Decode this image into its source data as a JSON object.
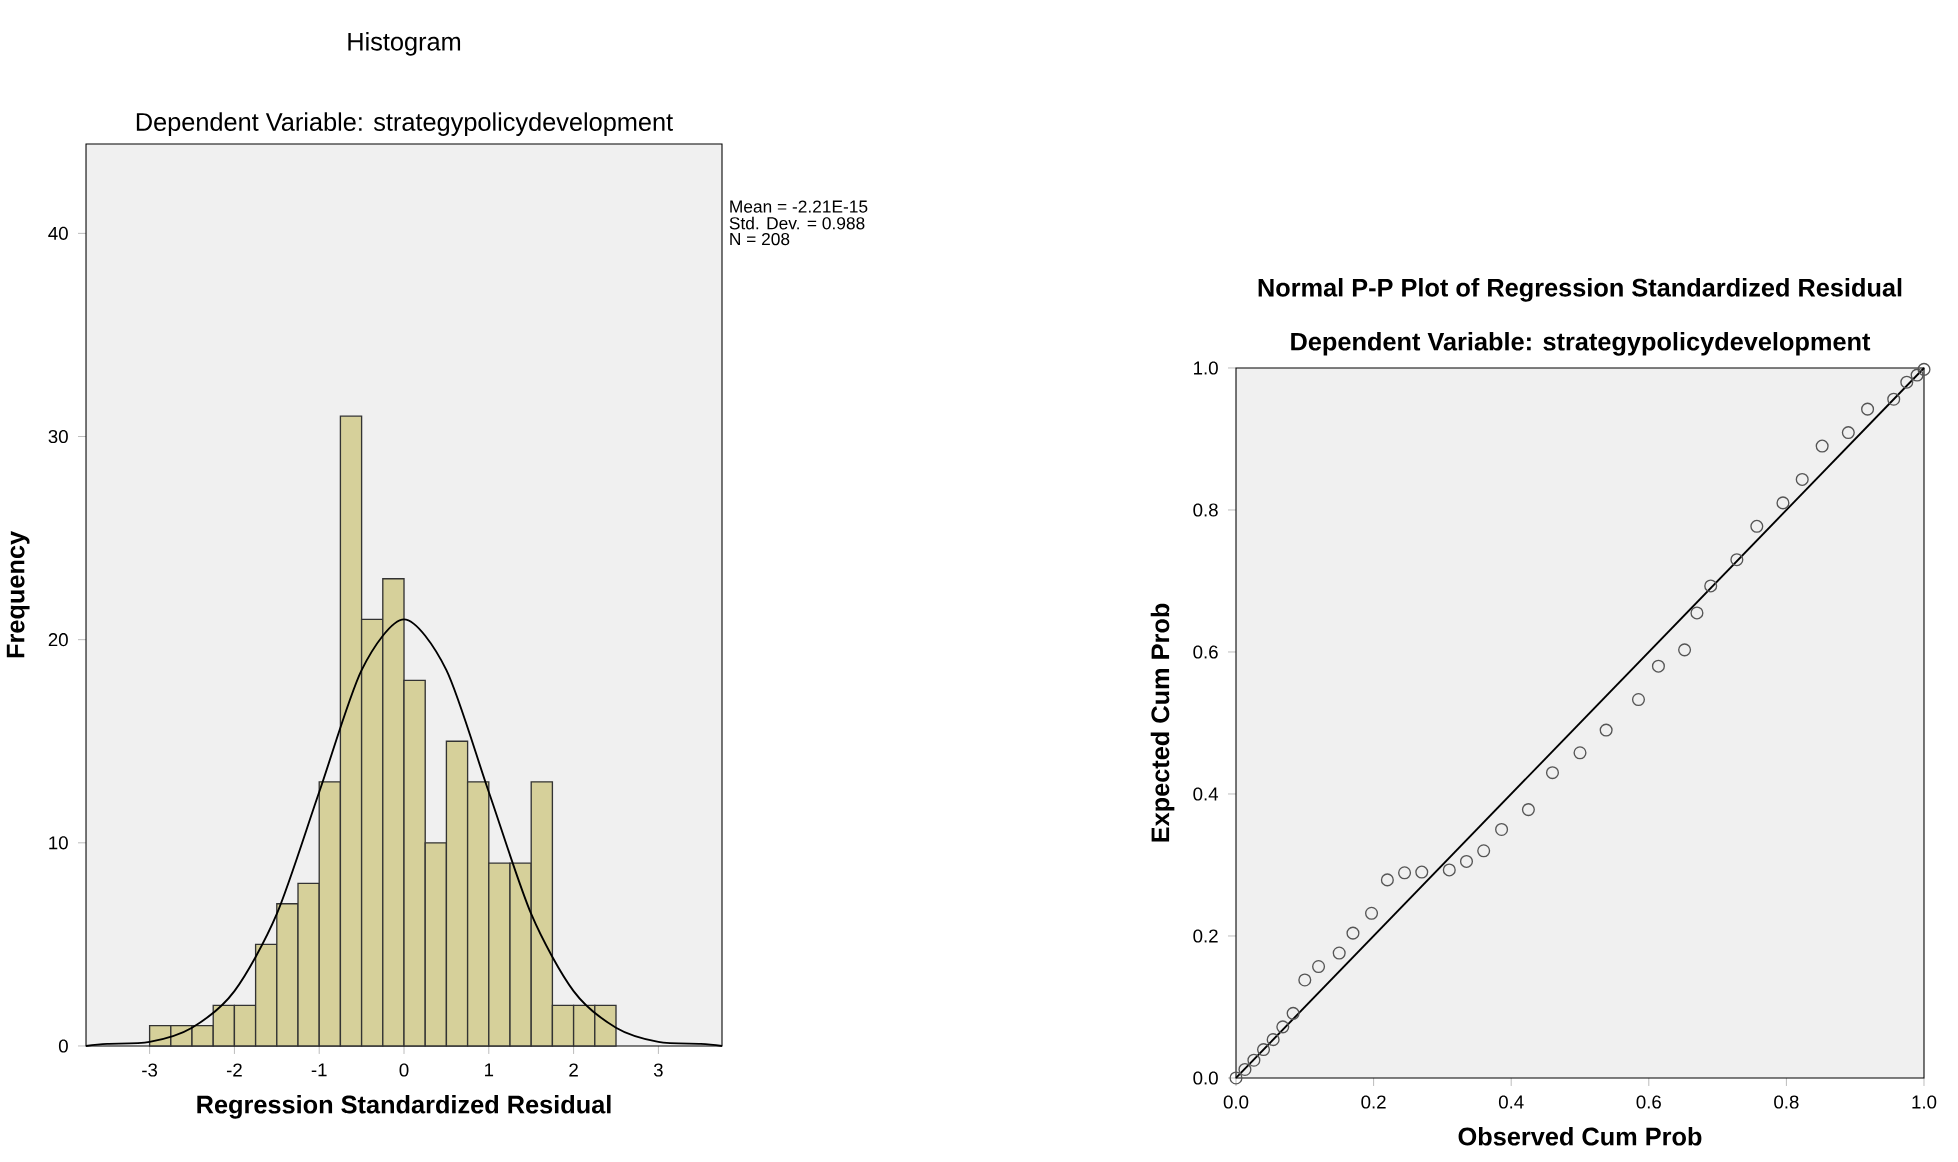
{
  "chart_data": [
    {
      "type": "histogram",
      "title": "Histogram",
      "subtitle": "Dependent Variable: strategypolicydevelopment",
      "xlabel": "Regression Standardized Residual",
      "ylabel": "Frequency",
      "xlim": [
        -3.75,
        3.75
      ],
      "ylim": [
        0,
        44.4
      ],
      "xticks": [
        -3,
        -2,
        -1,
        0,
        1,
        2,
        3
      ],
      "yticks": [
        0,
        10,
        20,
        30,
        40
      ],
      "annotations": [
        "Mean = -2.21E-15",
        "Std. Dev. = 0.988",
        "N = 208"
      ],
      "series": [
        {
          "type": "histogram",
          "color": "#d6d09a",
          "bins": [
            -3,
            -2.75,
            -2.5,
            -2.25,
            -2,
            -1.75,
            -1.5,
            -1.25,
            -1,
            -0.75,
            -0.5,
            -0.25,
            0,
            0.25,
            0.5,
            0.75,
            1,
            1.25,
            1.5,
            1.75,
            2,
            2.25,
            2.5
          ],
          "values": [
            1,
            1,
            1,
            2,
            2,
            5,
            7,
            8,
            13,
            31,
            21,
            23,
            18,
            10,
            15,
            13,
            9,
            9,
            13,
            2,
            2,
            2
          ]
        },
        {
          "type": "line",
          "color": "#000000",
          "x": [
            -3.75,
            -3.5,
            -3,
            -2.5,
            -2,
            -1.5,
            -1,
            -0.5,
            0,
            0.5,
            1,
            1.5,
            2,
            2.5,
            3,
            3.5,
            3.75
          ],
          "values": [
            0,
            0.1,
            0.2,
            0.9,
            2.7,
            6.5,
            12.5,
            18.5,
            21,
            18.5,
            12.5,
            6.5,
            2.7,
            0.9,
            0.2,
            0.1,
            0
          ]
        }
      ]
    },
    {
      "type": "scatter",
      "title": "Normal P-P Plot of Regression Standardized Residual",
      "subtitle": "Dependent Variable: strategypolicydevelopment",
      "xlabel": "Observed Cum Prob",
      "ylabel": "Expected Cum Prob",
      "xlim": [
        0,
        1
      ],
      "ylim": [
        0,
        1
      ],
      "xticks": [
        {
          "value": 0,
          "label": "0.0"
        },
        {
          "value": 0.2,
          "label": "0.2"
        },
        {
          "value": 0.4,
          "label": "0.4"
        },
        {
          "value": 0.6,
          "label": "0.6"
        },
        {
          "value": 0.8,
          "label": "0.8"
        },
        {
          "value": 1,
          "label": "1.0"
        }
      ],
      "yticks": [
        {
          "value": 0,
          "label": "0.0"
        },
        {
          "value": 0.2,
          "label": "0.2"
        },
        {
          "value": 0.4,
          "label": "0.4"
        },
        {
          "value": 0.6,
          "label": "0.6"
        },
        {
          "value": 0.8,
          "label": "0.8"
        },
        {
          "value": 1,
          "label": "1.0"
        }
      ],
      "series": [
        {
          "type": "scatter",
          "color": "#555555",
          "marker": "circle",
          "x": [
            0,
            0.013,
            0.026,
            0.04,
            0.054,
            0.068,
            0.083,
            0.1,
            0.12,
            0.15,
            0.17,
            0.197,
            0.22,
            0.245,
            0.27,
            0.31,
            0.335,
            0.36,
            0.386,
            0.425,
            0.46,
            0.5,
            0.538,
            0.585,
            0.614,
            0.652,
            0.67,
            0.69,
            0.728,
            0.757,
            0.795,
            0.823,
            0.852,
            0.89,
            0.918,
            0.956,
            0.975,
            0.99,
            1.0
          ],
          "values": [
            0,
            0.012,
            0.025,
            0.04,
            0.054,
            0.072,
            0.091,
            0.138,
            0.157,
            0.176,
            0.204,
            0.232,
            0.279,
            0.289,
            0.29,
            0.293,
            0.305,
            0.32,
            0.35,
            0.378,
            0.43,
            0.458,
            0.49,
            0.533,
            0.58,
            0.603,
            0.655,
            0.693,
            0.73,
            0.777,
            0.81,
            0.843,
            0.89,
            0.909,
            0.942,
            0.956,
            0.98,
            0.99,
            0.998
          ]
        },
        {
          "type": "line",
          "color": "#000000",
          "x": [
            0,
            1
          ],
          "values": [
            0,
            1
          ]
        }
      ]
    }
  ]
}
